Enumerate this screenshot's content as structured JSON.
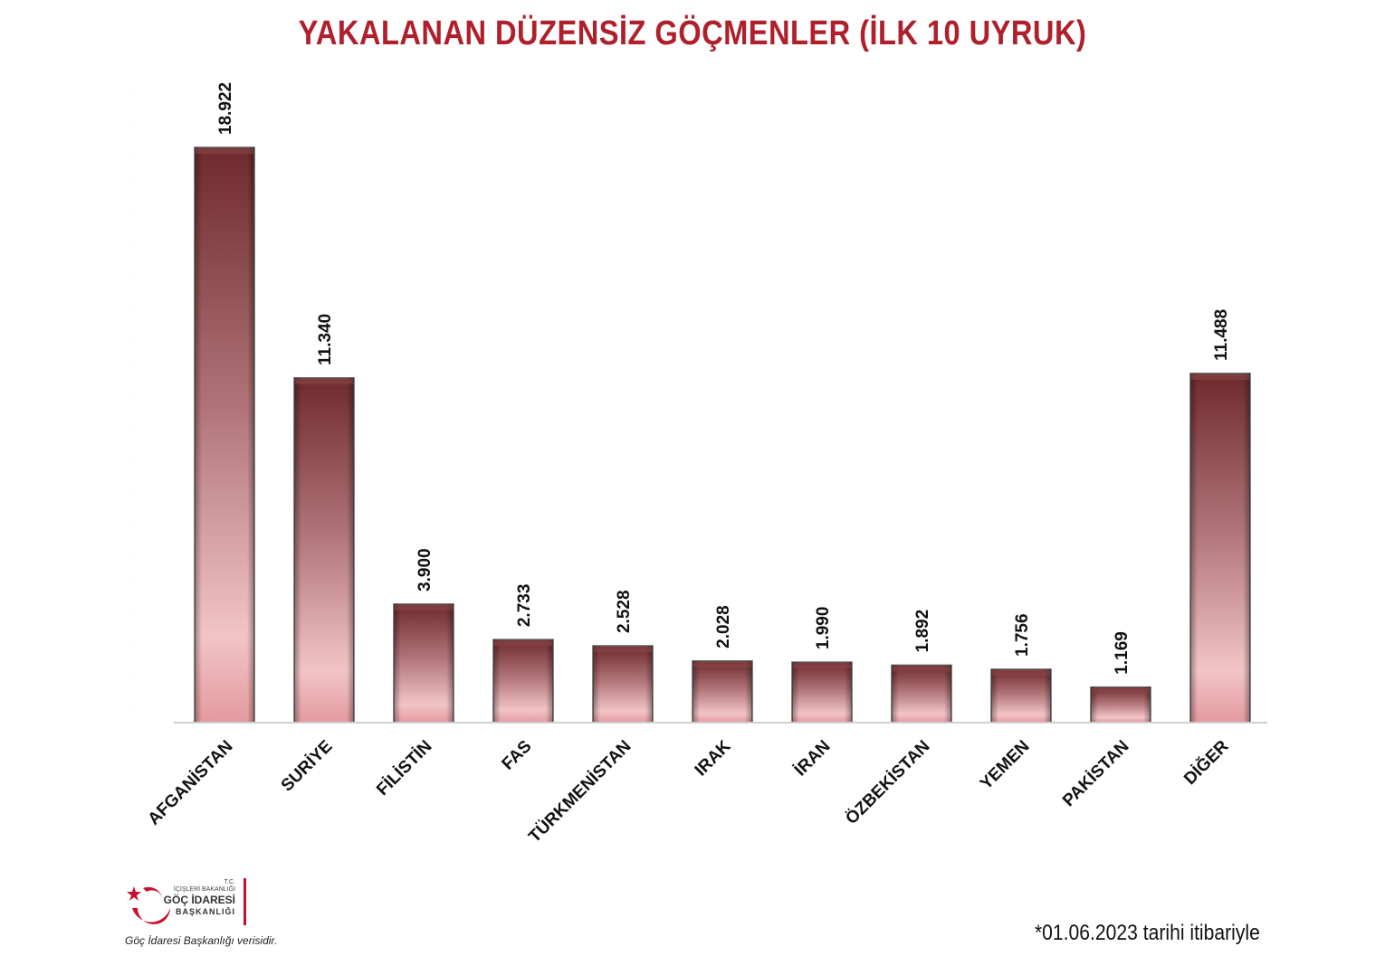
{
  "chart_data": {
    "type": "bar",
    "title": "YAKALANAN DÜZENSİZ GÖÇMENLER (İLK 10 UYRUK)",
    "categories": [
      "AFGANİSTAN",
      "SURİYE",
      "FİLİSTİN",
      "FAS",
      "TÜRKMENİSTAN",
      "IRAK",
      "İRAN",
      "ÖZBEKİSTAN",
      "YEMEN",
      "PAKİSTAN",
      "DİĞER"
    ],
    "values": [
      18922,
      11340,
      3900,
      2733,
      2528,
      2028,
      1990,
      1892,
      1756,
      1169,
      11488
    ],
    "value_labels": [
      "18.922",
      "11.340",
      "3.900",
      "2.733",
      "2.528",
      "2.028",
      "1.990",
      "1.892",
      "1.756",
      "1.169",
      "11.488"
    ],
    "xlabel": "",
    "ylabel": "",
    "ylim": [
      0,
      20000
    ],
    "grid": false,
    "legend": "none",
    "colors": {
      "bar_top": "#6e2a2c",
      "bar_bottom": "#f2c2c4",
      "title": "#b0202c"
    }
  },
  "logo": {
    "tc": "T.C.",
    "line1": "İÇİŞLERİ BAKANLIĞI",
    "line2": "GÖÇ İDARESİ",
    "line3": "BAŞKANLIĞI"
  },
  "footer": {
    "source": "Göç İdaresi Başkanlığı verisidir.",
    "date_note": "*01.06.2023 tarihi itibariyle"
  }
}
